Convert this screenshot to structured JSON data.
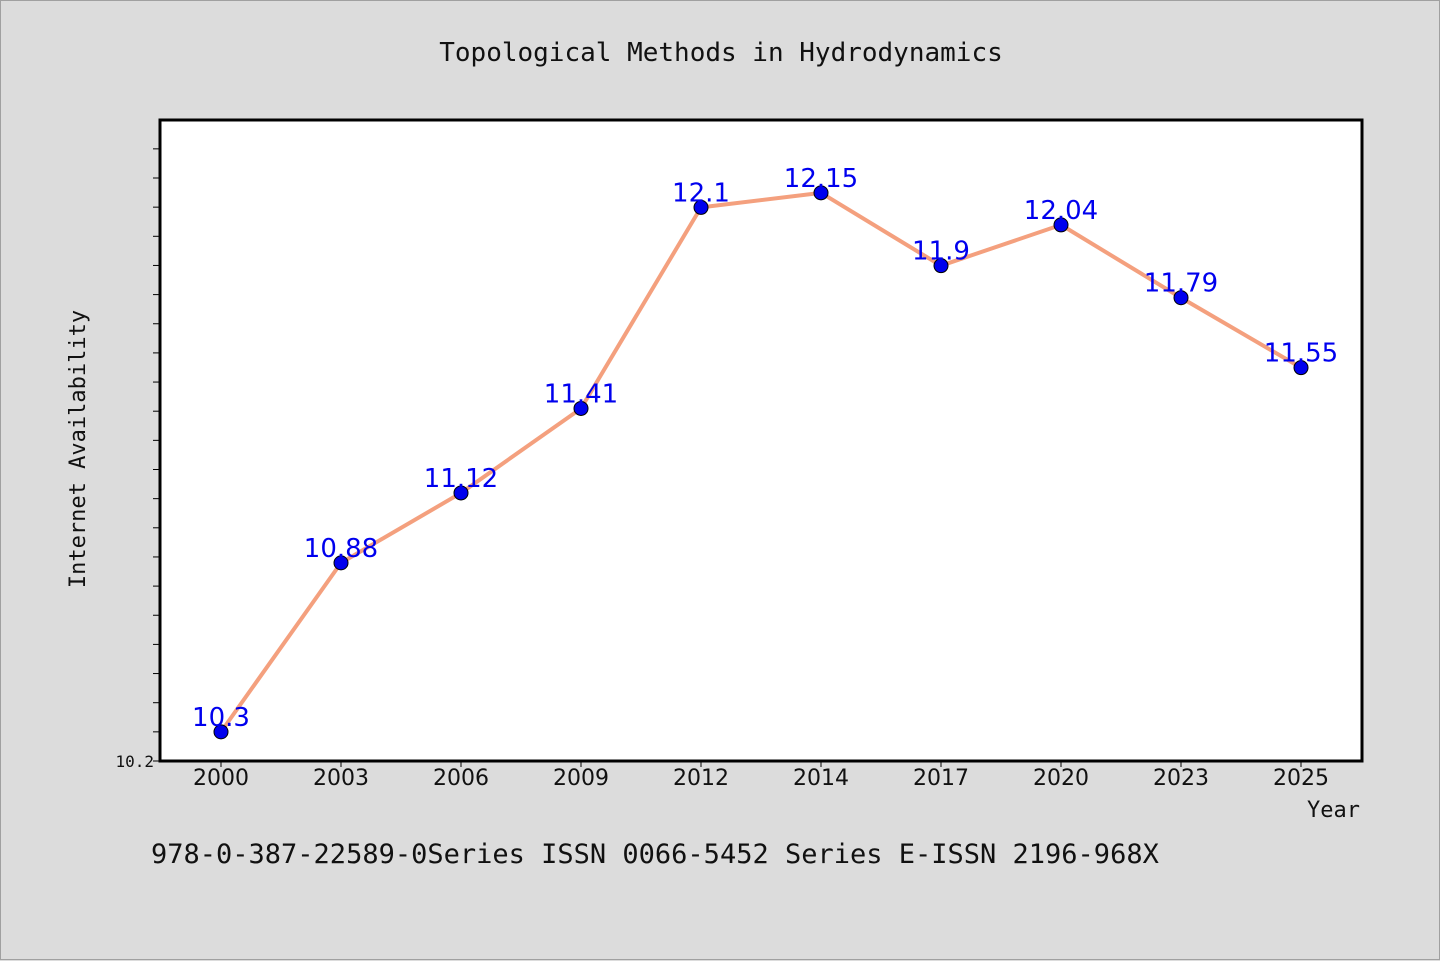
{
  "chart_data": {
    "type": "line",
    "title": "Topological Methods in Hydrodynamics",
    "xlabel": "Year",
    "ylabel": "Internet Availability",
    "categories": [
      "2000",
      "2003",
      "2006",
      "2009",
      "2012",
      "2014",
      "2017",
      "2020",
      "2023",
      "2025"
    ],
    "series": [
      {
        "values": [
          10.3,
          10.88,
          11.12,
          11.41,
          12.1,
          12.15,
          11.9,
          12.04,
          11.79,
          11.55
        ],
        "labels": [
          "10.3",
          "10.88",
          "11.12",
          "11.41",
          "12.1",
          "12.15",
          "11.9",
          "12.04",
          "11.79",
          "11.55"
        ],
        "line_color": "#f4a07e",
        "marker_color": "#0000ee",
        "label_color": "#0000ee"
      }
    ],
    "ylim": [
      10.2,
      12.4
    ],
    "ytick_labels": [
      "10.2"
    ],
    "grid": false,
    "legend": "none"
  },
  "footer": {
    "text": "978-0-387-22589-0Series ISSN 0066-5452 Series E-ISSN 2196-968X"
  },
  "colors": {
    "background": "#dcdcdc",
    "plot_background": "#ffffff",
    "axis": "#000000"
  }
}
